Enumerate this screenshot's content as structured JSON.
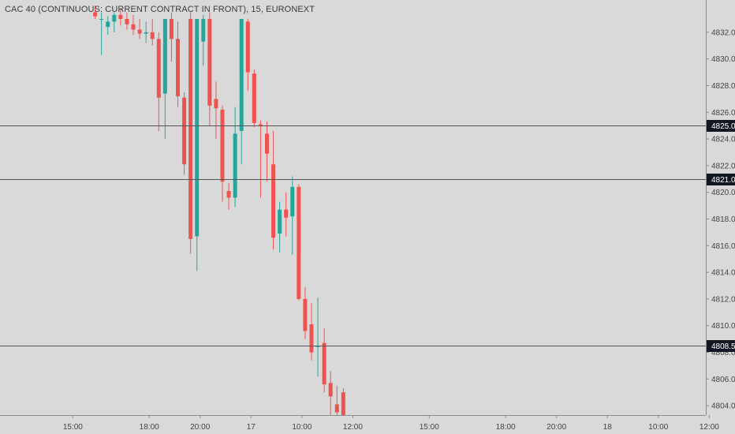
{
  "chart_data": {
    "type": "candlestick",
    "title": "CAC 40 (CONTINUOUS: CURRENT CONTRACT IN FRONT), 15, EURONEXT",
    "ylim": [
      4802.8,
      4833.0
    ],
    "y_ticks": [
      "4804.0",
      "4806.0",
      "4808.0",
      "4810.0",
      "4812.0",
      "4814.0",
      "4816.0",
      "4818.0",
      "4820.0",
      "4822.0",
      "4824.0",
      "4826.0",
      "4828.0",
      "4830.0",
      "4832.0"
    ],
    "x_tick_labels": [
      {
        "label": "15:00",
        "pos": -3.5
      },
      {
        "label": "18:00",
        "pos": 8.5
      },
      {
        "label": "20:00",
        "pos": 16.5
      },
      {
        "label": "17",
        "pos": 24.5
      },
      {
        "label": "10:00",
        "pos": 32.5
      },
      {
        "label": "12:00",
        "pos": 40.5
      },
      {
        "label": "15:00",
        "pos": 52.5
      },
      {
        "label": "18:00",
        "pos": 64.5
      },
      {
        "label": "20:00",
        "pos": 72.5
      },
      {
        "label": "18",
        "pos": 80.5
      },
      {
        "label": "10:00",
        "pos": 88.5
      },
      {
        "label": "12:00",
        "pos": 96.5
      }
    ],
    "horizontal_levels": [
      {
        "value": 4825.0,
        "label": "4825.0"
      },
      {
        "value": 4821.0,
        "label": "4821.0"
      },
      {
        "value": 4808.5,
        "label": "4808.5"
      }
    ],
    "up_color": "#26a69a",
    "down_color": "#ef5350",
    "level_line_color": "#555555",
    "tag_color": "#131722",
    "candles": [
      {
        "o": 4833.5,
        "h": 4834.0,
        "l": 4833.0,
        "c": 4833.2
      },
      {
        "o": 4833.0,
        "h": 4833.5,
        "l": 4830.3,
        "c": 4833.0
      },
      {
        "o": 4832.4,
        "h": 4833.2,
        "l": 4831.8,
        "c": 4832.8
      },
      {
        "o": 4832.8,
        "h": 4833.5,
        "l": 4832.0,
        "c": 4833.3
      },
      {
        "o": 4833.3,
        "h": 4833.8,
        "l": 4832.5,
        "c": 4833.0
      },
      {
        "o": 4833.0,
        "h": 4833.5,
        "l": 4832.2,
        "c": 4832.6
      },
      {
        "o": 4832.6,
        "h": 4833.3,
        "l": 4831.8,
        "c": 4832.2
      },
      {
        "o": 4832.2,
        "h": 4833.0,
        "l": 4831.5,
        "c": 4831.9
      },
      {
        "o": 4831.9,
        "h": 4832.8,
        "l": 4831.2,
        "c": 4832.0
      },
      {
        "o": 4832.0,
        "h": 4833.0,
        "l": 4831.0,
        "c": 4831.5
      },
      {
        "o": 4831.5,
        "h": 4832.0,
        "l": 4824.6,
        "c": 4827.1
      },
      {
        "o": 4827.4,
        "h": 4833.0,
        "l": 4824.0,
        "c": 4833.0
      },
      {
        "o": 4833.0,
        "h": 4833.5,
        "l": 4829.8,
        "c": 4831.5
      },
      {
        "o": 4831.5,
        "h": 4832.8,
        "l": 4826.4,
        "c": 4827.2
      },
      {
        "o": 4827.1,
        "h": 4827.5,
        "l": 4821.3,
        "c": 4822.1
      },
      {
        "o": 4833.0,
        "h": 4833.5,
        "l": 4815.4,
        "c": 4816.5
      },
      {
        "o": 4816.7,
        "h": 4833.0,
        "l": 4814.1,
        "c": 4833.0
      },
      {
        "o": 4831.3,
        "h": 4833.3,
        "l": 4829.5,
        "c": 4833.0
      },
      {
        "o": 4833.0,
        "h": 4833.5,
        "l": 4825.0,
        "c": 4826.5
      },
      {
        "o": 4827.0,
        "h": 4828.3,
        "l": 4824.0,
        "c": 4826.3
      },
      {
        "o": 4826.2,
        "h": 4826.5,
        "l": 4819.3,
        "c": 4820.8
      },
      {
        "o": 4820.1,
        "h": 4820.7,
        "l": 4818.7,
        "c": 4819.6
      },
      {
        "o": 4819.6,
        "h": 4826.4,
        "l": 4818.9,
        "c": 4824.4
      },
      {
        "o": 4824.6,
        "h": 4833.0,
        "l": 4822.1,
        "c": 4833.0
      },
      {
        "o": 4832.8,
        "h": 4833.0,
        "l": 4827.6,
        "c": 4829.0
      },
      {
        "o": 4828.9,
        "h": 4829.2,
        "l": 4824.9,
        "c": 4825.2
      },
      {
        "o": 4825.1,
        "h": 4825.4,
        "l": 4819.6,
        "c": 4825.0
      },
      {
        "o": 4824.4,
        "h": 4825.3,
        "l": 4820.8,
        "c": 4822.9
      },
      {
        "o": 4822.1,
        "h": 4824.6,
        "l": 4815.7,
        "c": 4816.6
      },
      {
        "o": 4816.9,
        "h": 4819.3,
        "l": 4815.5,
        "c": 4818.7
      },
      {
        "o": 4818.7,
        "h": 4820.0,
        "l": 4816.7,
        "c": 4818.1
      },
      {
        "o": 4818.2,
        "h": 4821.2,
        "l": 4815.3,
        "c": 4820.4
      },
      {
        "o": 4820.4,
        "h": 4820.6,
        "l": 4811.9,
        "c": 4812.0
      },
      {
        "o": 4812.0,
        "h": 4812.9,
        "l": 4809.0,
        "c": 4809.6
      },
      {
        "o": 4810.1,
        "h": 4811.7,
        "l": 4807.4,
        "c": 4808.0
      },
      {
        "o": 4808.4,
        "h": 4812.1,
        "l": 4806.2,
        "c": 4808.5
      },
      {
        "o": 4808.7,
        "h": 4809.8,
        "l": 4805.0,
        "c": 4805.6
      },
      {
        "o": 4805.7,
        "h": 4806.6,
        "l": 4803.0,
        "c": 4804.7
      },
      {
        "o": 4804.1,
        "h": 4805.5,
        "l": 4802.8,
        "c": 4803.5
      },
      {
        "o": 4805.0,
        "h": 4805.3,
        "l": 4802.8,
        "c": 4803.0
      }
    ]
  }
}
